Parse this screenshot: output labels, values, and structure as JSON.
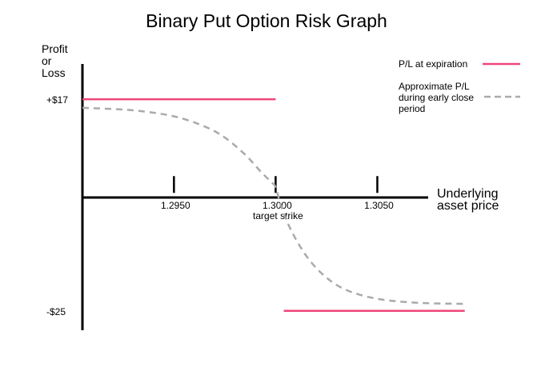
{
  "chart_data": {
    "type": "line",
    "title": "Binary Put Option Risk Graph",
    "ylabel_lines": [
      "Profit",
      "or",
      "Loss"
    ],
    "xlabel_lines": [
      "Underlying",
      "asset price"
    ],
    "x_ticks": [
      {
        "value": 1.295,
        "label": "1.2950"
      },
      {
        "value": 1.3,
        "label": "1.3000"
      },
      {
        "value": 1.305,
        "label": "1.3050"
      }
    ],
    "strike": {
      "value": 1.3,
      "annotation": "target strike"
    },
    "y_ticks": [
      {
        "value": 17,
        "label": "+$17"
      },
      {
        "value": -25,
        "label": "-$25"
      }
    ],
    "xlim": [
      1.2905,
      1.3075
    ],
    "ylim": [
      -29,
      24
    ],
    "grid": false,
    "legend_position": "top-right",
    "series": [
      {
        "name": "P/L at expiration",
        "style": "solid",
        "color": "#f0457a",
        "segments": [
          [
            [
              1.2905,
              17
            ],
            [
              1.3,
              17
            ]
          ],
          [
            [
              1.3004,
              -25
            ],
            [
              1.3093,
              -25
            ]
          ]
        ]
      },
      {
        "name": "Approximate P/L during early close period",
        "legend_lines": [
          "Approximate P/L",
          "during early close",
          "period"
        ],
        "style": "dashed",
        "color": "#aaaaaa",
        "x": [
          1.2905,
          1.293,
          1.295,
          1.2965,
          1.2975,
          1.2985,
          1.2993,
          1.2998,
          1.3,
          1.3003,
          1.3008,
          1.3016,
          1.3025,
          1.3035,
          1.305,
          1.307,
          1.3093
        ],
        "y": [
          15.3,
          14.8,
          13.6,
          11.6,
          9.4,
          6.0,
          2.5,
          0.5,
          -0.5,
          -4.5,
          -9.3,
          -14.6,
          -18.4,
          -20.9,
          -22.6,
          -23.4,
          -23.6
        ]
      }
    ]
  }
}
